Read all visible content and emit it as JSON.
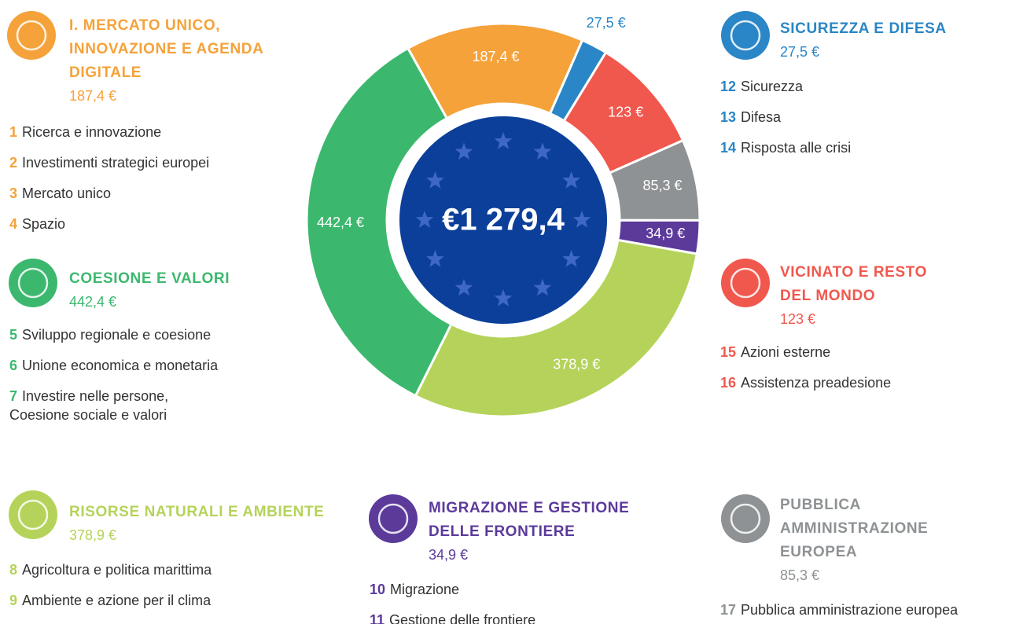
{
  "chart_data": {
    "type": "donut",
    "center_label": "€1 279,4",
    "categories": [
      "I. MERCATO UNICO, INNOVAZIONE E AGENDA DIGITALE",
      "SICUREZZA E DIFESA",
      "VICINATO E RESTO DEL MONDO",
      "PUBBLICA AMMINISTRAZIONE EUROPEA",
      "MIGRAZIONE E GESTIONE DELLE FRONTIERE",
      "RISORSE NATURALI E AMBIENTE",
      "COESIONE E VALORI"
    ],
    "values": [
      187.4,
      27.5,
      123,
      85.3,
      34.9,
      378.9,
      442.4
    ],
    "value_labels": [
      "187,4 €",
      "27,5 €",
      "123 €",
      "85,3 €",
      "34,9 €",
      "378,9 €",
      "442,4 €"
    ],
    "colors": [
      "#f5a23a",
      "#2a86c6",
      "#f0584e",
      "#8e9294",
      "#5b3a9a",
      "#b5d35a",
      "#3cb86e"
    ]
  },
  "groups": [
    {
      "items": [
        {
          "num": "1",
          "text": "Ricerca e innovazione"
        },
        {
          "num": "2",
          "text": "Investimenti strategici europei"
        },
        {
          "num": "3",
          "text": "Mercato unico"
        },
        {
          "num": "4",
          "text": "Spazio"
        }
      ]
    },
    {
      "items": [
        {
          "num": "12",
          "text": "Sicurezza"
        },
        {
          "num": "13",
          "text": "Difesa"
        },
        {
          "num": "14",
          "text": "Risposta alle crisi"
        }
      ]
    },
    {
      "items": [
        {
          "num": "15",
          "text": "Azioni esterne"
        },
        {
          "num": "16",
          "text": "Assistenza preadesione"
        }
      ]
    },
    {
      "items": [
        {
          "num": "17",
          "text": "Pubblica amministrazione europea"
        }
      ]
    },
    {
      "items": [
        {
          "num": "10",
          "text": "Migrazione"
        },
        {
          "num": "11",
          "text": "Gestione delle frontiere"
        }
      ]
    },
    {
      "items": [
        {
          "num": "8",
          "text": "Agricoltura e politica marittima"
        },
        {
          "num": "9",
          "text": "Ambiente e azione per il clima"
        }
      ]
    },
    {
      "items": [
        {
          "num": "5",
          "text": "Sviluppo regionale e coesione"
        },
        {
          "num": "6",
          "text": "Unione economica e monetaria"
        },
        {
          "num": "7",
          "text": "Investire nelle persone, Coesione sociale e valori"
        }
      ]
    }
  ]
}
